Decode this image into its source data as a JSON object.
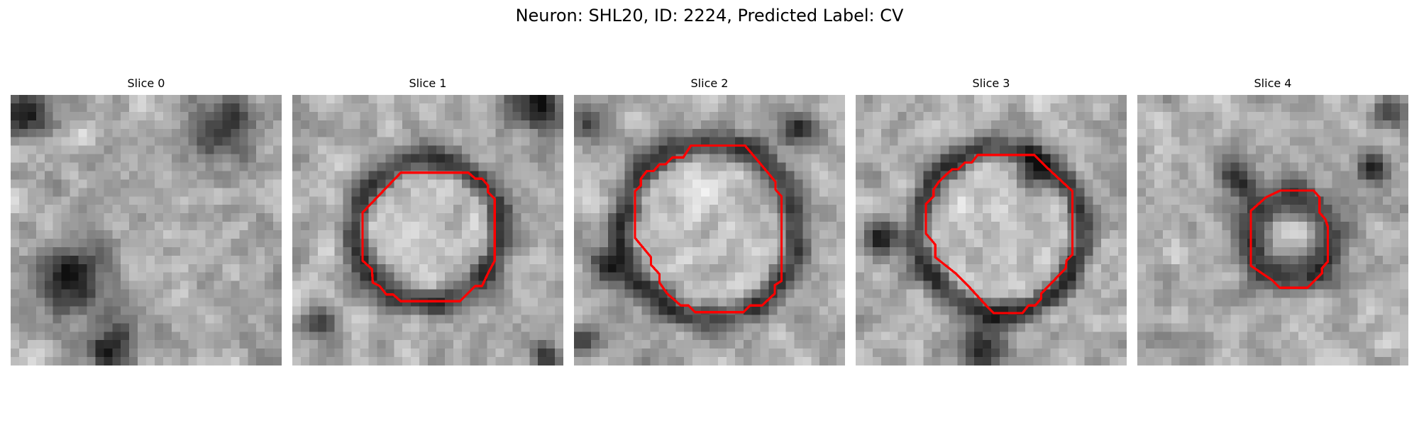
{
  "figure": {
    "title": "Neuron: SHL20, ID: 2224, Predicted Label: CV"
  },
  "panels": [
    {
      "title": "Slice 0",
      "has_contour": false,
      "contour_color": "#ff0000"
    },
    {
      "title": "Slice 1",
      "has_contour": true,
      "contour_color": "#ff0000"
    },
    {
      "title": "Slice 2",
      "has_contour": true,
      "contour_color": "#ff0000"
    },
    {
      "title": "Slice 3",
      "has_contour": true,
      "contour_color": "#ff0000"
    },
    {
      "title": "Slice 4",
      "has_contour": true,
      "contour_color": "#ff0000"
    }
  ],
  "colormap": "grayscale"
}
